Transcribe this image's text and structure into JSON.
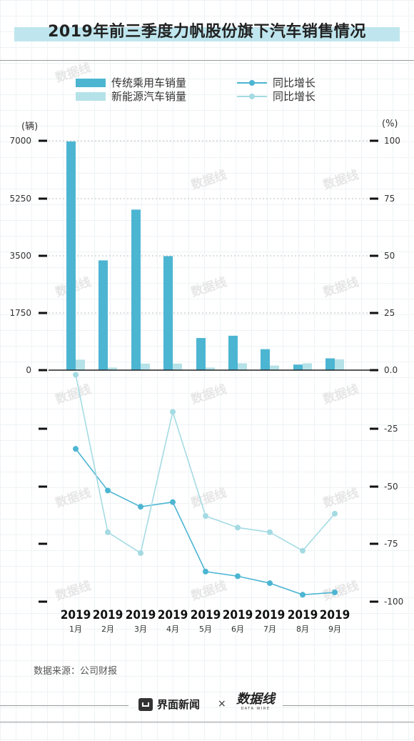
{
  "title": "2019年前三季度力帆股份旗下汽车销售情况",
  "legend": {
    "traditional_bar": "传统乘用车销量",
    "nev_bar": "新能源汽车销量",
    "traditional_line": "同比增长",
    "nev_line": "同比增长"
  },
  "units": {
    "left": "(辆)",
    "right": "(%)"
  },
  "colors": {
    "traditional": "#4cb5d2",
    "nev": "#b5e2e8",
    "traditional_line": "#4cb5d2",
    "nev_line": "#a4dbe3"
  },
  "chart_data": [
    {
      "type": "bar",
      "categories": [
        "2019 1月",
        "2019 2月",
        "2019 3月",
        "2019 4月",
        "2019 5月",
        "2019 6月",
        "2019 7月",
        "2019 8月",
        "2019 9月"
      ],
      "series": [
        {
          "name": "传统乘用车销量",
          "values": [
            6980,
            3350,
            4900,
            3480,
            980,
            1050,
            640,
            170,
            360
          ]
        },
        {
          "name": "新能源汽车销量",
          "values": [
            320,
            80,
            200,
            200,
            80,
            210,
            140,
            210,
            330
          ]
        }
      ],
      "ylabel": "(辆)",
      "yticks": [
        "0",
        "1750",
        "3500",
        "5250",
        "7000"
      ],
      "ylim": [
        0,
        7000
      ]
    },
    {
      "type": "line",
      "categories": [
        "2019 1月",
        "2019 2月",
        "2019 3月",
        "2019 4月",
        "2019 5月",
        "2019 6月",
        "2019 7月",
        "2019 8月",
        "2019 9月"
      ],
      "series": [
        {
          "name": "同比增长",
          "values": [
            -34,
            -52,
            -59,
            -57,
            -87,
            -89,
            -92,
            -97,
            -96
          ]
        },
        {
          "name": "同比增长",
          "values": [
            -2,
            -70,
            -79,
            -18,
            -63,
            -68,
            -70,
            -78,
            -62
          ]
        }
      ],
      "ylabel": "(%)",
      "yticks_top": [
        "100",
        "75",
        "50",
        "25",
        "0.0"
      ],
      "yticks_bottom": [
        "-25",
        "-50",
        "-75",
        "-100"
      ],
      "ylim": [
        -100,
        0
      ]
    }
  ],
  "x_labels": {
    "years": [
      "2019",
      "2019",
      "2019",
      "2019",
      "2019",
      "2019",
      "2019",
      "2019",
      "2019"
    ],
    "months": [
      "1月",
      "2月",
      "3月",
      "4月",
      "5月",
      "6月",
      "7月",
      "8月",
      "9月"
    ]
  },
  "source": "数据来源：公司财报",
  "footer": {
    "brand1": "界面新闻",
    "separator": "×",
    "brand2": "数据线",
    "brand2_sub": "DATA WIRE"
  },
  "watermark": "数据线"
}
